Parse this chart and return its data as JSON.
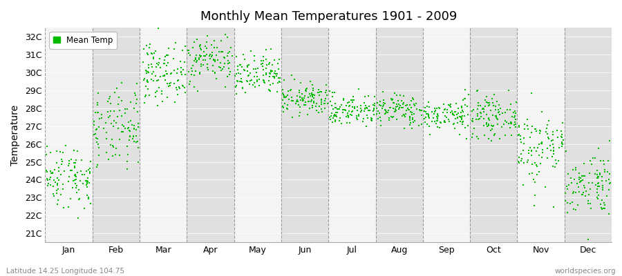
{
  "title": "Monthly Mean Temperatures 1901 - 2009",
  "ylabel": "Temperature",
  "xlabel_labels": [
    "Jan",
    "Feb",
    "Mar",
    "Apr",
    "May",
    "Jun",
    "Jul",
    "Aug",
    "Sep",
    "Oct",
    "Nov",
    "Dec"
  ],
  "ytick_labels": [
    "21C",
    "22C",
    "23C",
    "24C",
    "25C",
    "26C",
    "27C",
    "28C",
    "29C",
    "30C",
    "31C",
    "32C"
  ],
  "ytick_values": [
    21,
    22,
    23,
    24,
    25,
    26,
    27,
    28,
    29,
    30,
    31,
    32
  ],
  "ylim": [
    20.5,
    32.5
  ],
  "dot_color": "#00bb00",
  "dot_size": 3,
  "legend_label": "Mean Temp",
  "footnote_left": "Latitude 14.25 Longitude 104.75",
  "footnote_right": "worldspecies.org",
  "background_color": "#ffffff",
  "plot_bg_color": "#e8e8e8",
  "band_color_light": "#f4f4f4",
  "band_color_dark": "#e0e0e0",
  "n_years": 109,
  "monthly_means": [
    24.2,
    26.8,
    30.0,
    30.8,
    29.8,
    28.5,
    27.9,
    27.9,
    27.6,
    27.5,
    25.8,
    23.8
  ],
  "monthly_stds": [
    0.9,
    1.1,
    0.8,
    0.7,
    0.6,
    0.45,
    0.45,
    0.45,
    0.45,
    0.55,
    1.1,
    0.9
  ],
  "seed": 42
}
